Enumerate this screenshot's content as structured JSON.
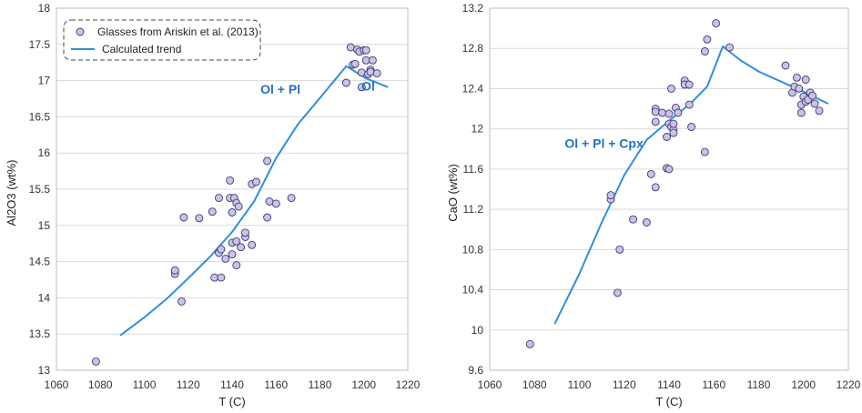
{
  "style": {
    "point_fill": "#c9c3e6",
    "point_stroke": "#3d3a73",
    "line_color": "#2e8fe0",
    "annotation_color": "#1f72c9",
    "grid_color": "#d9d9d9"
  },
  "chart_data": [
    {
      "type": "scatter",
      "xlabel": "T (C)",
      "ylabel": "Al2O3 (wt%)",
      "xlim": [
        1060,
        1220
      ],
      "ylim": [
        13,
        18
      ],
      "xticks": [
        "1060",
        "1080",
        "1100",
        "1120",
        "1140",
        "1160",
        "1180",
        "1200",
        "1220"
      ],
      "yticks": [
        "13",
        "13.5",
        "14",
        "14.5",
        "15",
        "15.5",
        "16",
        "16.5",
        "17",
        "17.5",
        "18"
      ],
      "grid": "horizontal",
      "legend": {
        "placement": "top-left",
        "items": [
          "Glasses from Ariskin et al. (2013)",
          "Calculated trend"
        ]
      },
      "annotations": [
        {
          "text": "Ol + Pl",
          "x": 1162,
          "y": 16.82
        },
        {
          "text": "Ol",
          "x": 1202,
          "y": 16.86
        }
      ],
      "series": [
        {
          "name": "Glasses from Ariskin et al. (2013)",
          "kind": "points",
          "points": [
            [
              1078,
              13.12
            ],
            [
              1114,
              14.33
            ],
            [
              1114,
              14.38
            ],
            [
              1117,
              13.95
            ],
            [
              1118,
              15.11
            ],
            [
              1125,
              15.1
            ],
            [
              1131,
              15.19
            ],
            [
              1132,
              14.28
            ],
            [
              1134,
              15.38
            ],
            [
              1134,
              14.62
            ],
            [
              1135,
              14.67
            ],
            [
              1135,
              14.28
            ],
            [
              1137,
              14.54
            ],
            [
              1139,
              15.38
            ],
            [
              1139,
              15.62
            ],
            [
              1140,
              14.6
            ],
            [
              1140,
              14.76
            ],
            [
              1140,
              15.18
            ],
            [
              1141,
              15.38
            ],
            [
              1142,
              14.78
            ],
            [
              1142,
              15.31
            ],
            [
              1142,
              14.45
            ],
            [
              1143,
              15.26
            ],
            [
              1144,
              14.7
            ],
            [
              1146,
              14.84
            ],
            [
              1146,
              14.9
            ],
            [
              1149,
              14.73
            ],
            [
              1149,
              15.57
            ],
            [
              1151,
              15.6
            ],
            [
              1156,
              15.89
            ],
            [
              1156,
              15.11
            ],
            [
              1157,
              15.33
            ],
            [
              1160,
              15.3
            ],
            [
              1167,
              15.38
            ],
            [
              1192,
              16.97
            ],
            [
              1194,
              17.46
            ],
            [
              1195,
              17.22
            ],
            [
              1196,
              17.23
            ],
            [
              1197,
              17.43
            ],
            [
              1198,
              17.4
            ],
            [
              1199,
              16.91
            ],
            [
              1199,
              17.11
            ],
            [
              1200,
              17.42
            ],
            [
              1201,
              17.42
            ],
            [
              1201,
              17.28
            ],
            [
              1202,
              17.09
            ],
            [
              1203,
              17.15
            ],
            [
              1203,
              17.12
            ],
            [
              1204,
              17.28
            ],
            [
              1206,
              17.1
            ]
          ]
        },
        {
          "name": "Calculated trend",
          "kind": "line",
          "points": [
            [
              1089,
              13.48
            ],
            [
              1100,
              13.73
            ],
            [
              1110,
              13.98
            ],
            [
              1120,
              14.27
            ],
            [
              1130,
              14.57
            ],
            [
              1140,
              14.91
            ],
            [
              1150,
              15.33
            ],
            [
              1160,
              15.93
            ],
            [
              1170,
              16.4
            ],
            [
              1180,
              16.76
            ],
            [
              1192,
              17.2
            ],
            [
              1201,
              17.03
            ],
            [
              1211,
              16.91
            ]
          ]
        }
      ]
    },
    {
      "type": "scatter",
      "xlabel": "T (C)",
      "ylabel": "CaO (wt%)",
      "xlim": [
        1060,
        1220
      ],
      "ylim": [
        9.6,
        13.2
      ],
      "xticks": [
        "1060",
        "1080",
        "1100",
        "1120",
        "1140",
        "1160",
        "1180",
        "1200",
        "1220"
      ],
      "yticks": [
        "9.6",
        "10",
        "10.4",
        "10.8",
        "11.2",
        "11.6",
        "12",
        "12.4",
        "12.8",
        "13.2"
      ],
      "grid": "horizontal",
      "annotations": [
        {
          "text": "Ol + Pl + Cpx",
          "x": 1111,
          "y": 11.81
        }
      ],
      "series": [
        {
          "name": "Glasses from Ariskin et al. (2013)",
          "kind": "points",
          "points": [
            [
              1078,
              9.86
            ],
            [
              1114,
              11.3
            ],
            [
              1114,
              11.34
            ],
            [
              1117,
              10.37
            ],
            [
              1118,
              10.8
            ],
            [
              1124,
              11.1
            ],
            [
              1130,
              11.07
            ],
            [
              1132,
              11.55
            ],
            [
              1134,
              11.42
            ],
            [
              1134,
              12.2
            ],
            [
              1134,
              12.17
            ],
            [
              1134,
              12.07
            ],
            [
              1137,
              12.16
            ],
            [
              1139,
              11.92
            ],
            [
              1139,
              11.61
            ],
            [
              1140,
              11.6
            ],
            [
              1140,
              12.05
            ],
            [
              1140,
              12.15
            ],
            [
              1141,
              12.4
            ],
            [
              1141,
              12.02
            ],
            [
              1142,
              11.99
            ],
            [
              1142,
              12.05
            ],
            [
              1142,
              11.96
            ],
            [
              1143,
              12.21
            ],
            [
              1144,
              12.16
            ],
            [
              1147,
              12.48
            ],
            [
              1147,
              12.44
            ],
            [
              1149,
              12.44
            ],
            [
              1149,
              12.24
            ],
            [
              1150,
              12.02
            ],
            [
              1156,
              11.77
            ],
            [
              1156,
              12.77
            ],
            [
              1157,
              12.89
            ],
            [
              1161,
              13.05
            ],
            [
              1167,
              12.81
            ],
            [
              1192,
              12.63
            ],
            [
              1195,
              12.36
            ],
            [
              1196,
              12.42
            ],
            [
              1197,
              12.51
            ],
            [
              1198,
              12.4
            ],
            [
              1199,
              12.16
            ],
            [
              1199,
              12.24
            ],
            [
              1200,
              12.32
            ],
            [
              1201,
              12.49
            ],
            [
              1201,
              12.27
            ],
            [
              1202,
              12.29
            ],
            [
              1203,
              12.36
            ],
            [
              1204,
              12.33
            ],
            [
              1205,
              12.25
            ],
            [
              1207,
              12.18
            ]
          ]
        },
        {
          "name": "Calculated trend",
          "kind": "line",
          "points": [
            [
              1089,
              10.06
            ],
            [
              1100,
              10.56
            ],
            [
              1110,
              11.07
            ],
            [
              1120,
              11.54
            ],
            [
              1130,
              11.89
            ],
            [
              1140,
              12.08
            ],
            [
              1150,
              12.26
            ],
            [
              1157,
              12.42
            ],
            [
              1164,
              12.82
            ],
            [
              1172,
              12.68
            ],
            [
              1180,
              12.57
            ],
            [
              1190,
              12.47
            ],
            [
              1200,
              12.37
            ],
            [
              1211,
              12.25
            ]
          ]
        }
      ]
    }
  ]
}
